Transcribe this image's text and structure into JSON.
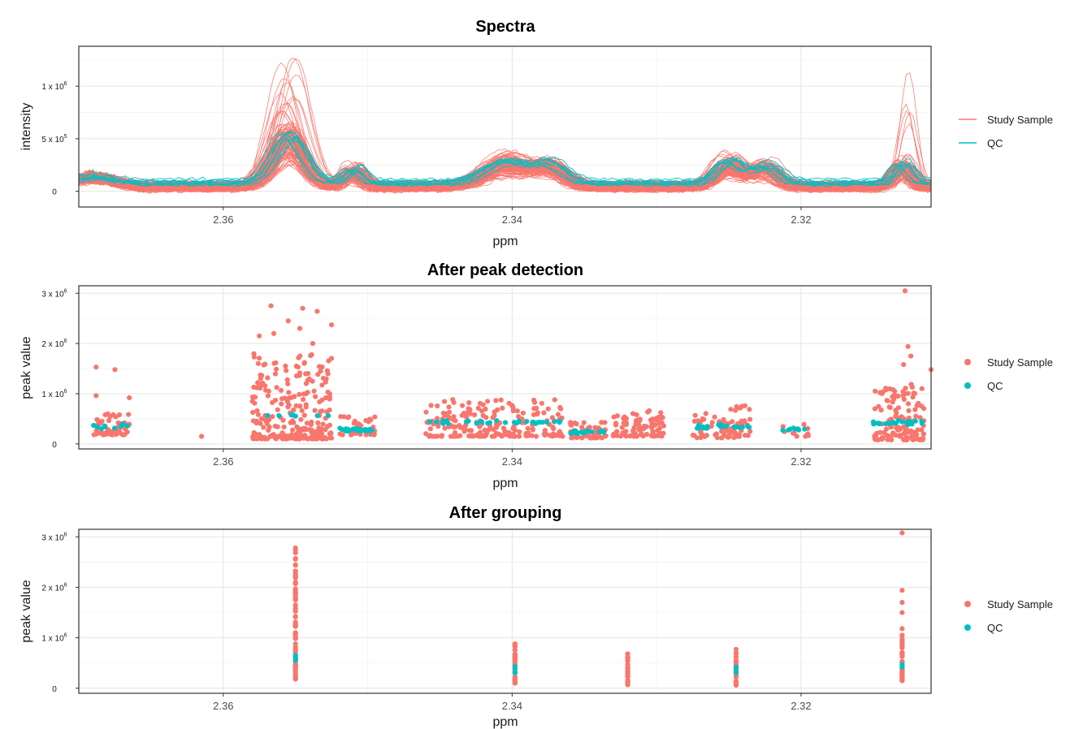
{
  "colors": {
    "study_sample": "#F8766D",
    "qc": "#00BFC4"
  },
  "chart_data": [
    {
      "type": "line",
      "title": "Spectra",
      "xlabel": "ppm",
      "ylabel": "intensity",
      "x_reversed": true,
      "xlim": [
        2.37,
        2.311
      ],
      "ylim": [
        -150000,
        1380000
      ],
      "x_ticks": [
        2.36,
        2.34,
        2.32
      ],
      "x_tick_labels": [
        "2.36",
        "2.34",
        "2.32"
      ],
      "y_ticks": [
        {
          "value": 0,
          "mantissa": "0",
          "exponent": ""
        },
        {
          "value": 500000,
          "mantissa": "5 x 10",
          "exponent": "5"
        },
        {
          "value": 1000000,
          "mantissa": "1 x 10",
          "exponent": "6"
        }
      ],
      "grid": true,
      "legend_position": "right",
      "series": [
        {
          "name": "Study Sample",
          "color": "#F8766D",
          "count": 110,
          "description_points_ppm": [
            2.369,
            2.365,
            2.36,
            2.356,
            2.354,
            2.35,
            2.34,
            2.335,
            2.33,
            2.325,
            2.32,
            2.313,
            2.311
          ],
          "representative_peak_intensity": [
            80000,
            60000,
            70000,
            350000,
            300000,
            150000,
            250000,
            220000,
            120000,
            230000,
            150000,
            250000,
            80000
          ]
        },
        {
          "name": "QC",
          "color": "#00BFC4",
          "count": 10,
          "description_points_ppm": [
            2.369,
            2.365,
            2.36,
            2.356,
            2.354,
            2.35,
            2.34,
            2.335,
            2.33,
            2.325,
            2.32,
            2.313,
            2.311
          ],
          "representative_peak_intensity": [
            150000,
            60000,
            60000,
            350000,
            250000,
            250000,
            300000,
            280000,
            100000,
            300000,
            250000,
            250000,
            -50000
          ]
        }
      ],
      "peaks": [
        {
          "ppm": 2.3555,
          "height": 450000,
          "width": 0.0015
        },
        {
          "ppm": 2.3405,
          "height": 200000,
          "width": 0.002
        },
        {
          "ppm": 2.3375,
          "height": 170000,
          "width": 0.0015
        },
        {
          "ppm": 2.325,
          "height": 200000,
          "width": 0.0012
        },
        {
          "ppm": 2.3225,
          "height": 170000,
          "width": 0.0012
        },
        {
          "ppm": 2.313,
          "height": 180000,
          "width": 0.0008
        },
        {
          "ppm": 2.351,
          "height": 140000,
          "width": 0.0008
        }
      ]
    },
    {
      "type": "scatter",
      "title": "After peak detection",
      "xlabel": "ppm",
      "ylabel": "peak value",
      "x_reversed": true,
      "xlim": [
        2.37,
        2.311
      ],
      "ylim": [
        -100000,
        3150000
      ],
      "x_ticks": [
        2.36,
        2.34,
        2.32
      ],
      "x_tick_labels": [
        "2.36",
        "2.34",
        "2.32"
      ],
      "y_ticks": [
        {
          "value": 0,
          "mantissa": "0",
          "exponent": ""
        },
        {
          "value": 1000000,
          "mantissa": "1 x 10",
          "exponent": "6"
        },
        {
          "value": 2000000,
          "mantissa": "2 x 10",
          "exponent": "6"
        },
        {
          "value": 3000000,
          "mantissa": "3 x 10",
          "exponent": "6"
        }
      ],
      "grid": true,
      "legend_position": "right",
      "clusters": [
        {
          "ppm_min": 2.3665,
          "ppm_max": 2.369,
          "n_study": 55,
          "n_qc": 10,
          "y_min": 180000,
          "y_max": 600000,
          "y_qc": 350000,
          "extra_study": [
            [
              2.3688,
              1530000
            ],
            [
              2.3675,
              1480000
            ],
            [
              2.3688,
              960000
            ],
            [
              2.3665,
              920000
            ]
          ]
        },
        {
          "ppm_min": 2.3615,
          "ppm_max": 2.3615,
          "n_study": 1,
          "n_qc": 0,
          "y_min": 150000,
          "y_max": 150000,
          "y_qc": 0,
          "extra_study": []
        },
        {
          "ppm_min": 2.3525,
          "ppm_max": 2.358,
          "n_study": 250,
          "n_qc": 8,
          "y_min": 100000,
          "y_max": 1800000,
          "y_qc": 560000,
          "extra_study": [
            [
              2.3567,
              2750000
            ],
            [
              2.3545,
              2700000
            ],
            [
              2.3535,
              2640000
            ],
            [
              2.3555,
              2450000
            ],
            [
              2.3525,
              2370000
            ],
            [
              2.3565,
              2200000
            ],
            [
              2.3538,
              2000000
            ],
            [
              2.3575,
              2150000
            ],
            [
              2.3547,
              2300000
            ]
          ]
        },
        {
          "ppm_min": 2.3495,
          "ppm_max": 2.352,
          "n_study": 30,
          "n_qc": 25,
          "y_min": 180000,
          "y_max": 550000,
          "y_qc": 280000,
          "extra_study": []
        },
        {
          "ppm_min": 2.3365,
          "ppm_max": 2.346,
          "n_study": 200,
          "n_qc": 30,
          "y_min": 150000,
          "y_max": 900000,
          "y_qc": 430000,
          "extra_study": []
        },
        {
          "ppm_min": 2.3335,
          "ppm_max": 2.336,
          "n_study": 60,
          "n_qc": 15,
          "y_min": 120000,
          "y_max": 500000,
          "y_qc": 240000,
          "extra_study": []
        },
        {
          "ppm_min": 2.3295,
          "ppm_max": 2.333,
          "n_study": 90,
          "n_qc": 0,
          "y_min": 150000,
          "y_max": 680000,
          "y_qc": 0,
          "extra_study": []
        },
        {
          "ppm_min": 2.3235,
          "ppm_max": 2.3275,
          "n_study": 80,
          "n_qc": 20,
          "y_min": 120000,
          "y_max": 780000,
          "y_qc": 350000,
          "extra_study": []
        },
        {
          "ppm_min": 2.3193,
          "ppm_max": 2.3215,
          "n_study": 12,
          "n_qc": 8,
          "y_min": 150000,
          "y_max": 450000,
          "y_qc": 300000,
          "extra_study": []
        },
        {
          "ppm_min": 2.3115,
          "ppm_max": 2.315,
          "n_study": 140,
          "n_qc": 25,
          "y_min": 80000,
          "y_max": 1200000,
          "y_qc": 420000,
          "extra_study": [
            [
              2.3128,
              3050000
            ],
            [
              2.3126,
              1940000
            ],
            [
              2.3124,
              1750000
            ],
            [
              2.311,
              1480000
            ],
            [
              2.3129,
              1580000
            ]
          ]
        }
      ]
    },
    {
      "type": "scatter",
      "title": "After grouping",
      "xlabel": "ppm",
      "ylabel": "peak value",
      "x_reversed": true,
      "xlim": [
        2.37,
        2.311
      ],
      "ylim": [
        -100000,
        3150000
      ],
      "x_ticks": [
        2.36,
        2.34,
        2.32
      ],
      "x_tick_labels": [
        "2.36",
        "2.34",
        "2.32"
      ],
      "y_ticks": [
        {
          "value": 0,
          "mantissa": "0",
          "exponent": ""
        },
        {
          "value": 1000000,
          "mantissa": "1 x 10",
          "exponent": "6"
        },
        {
          "value": 2000000,
          "mantissa": "2 x 10",
          "exponent": "6"
        },
        {
          "value": 3000000,
          "mantissa": "3 x 10",
          "exponent": "6"
        }
      ],
      "grid": true,
      "legend_position": "right",
      "groups": [
        {
          "ppm": 2.355,
          "y_min": 180000,
          "y_max": 2780000,
          "qc_values": [
            550000,
            650000,
            600000
          ],
          "n_study": 75
        },
        {
          "ppm": 2.3398,
          "y_min": 100000,
          "y_max": 880000,
          "qc_values": [
            300000,
            430000,
            380000
          ],
          "n_study": 25
        },
        {
          "ppm": 2.332,
          "y_min": 70000,
          "y_max": 680000,
          "qc_values": [],
          "n_study": 25
        },
        {
          "ppm": 2.3245,
          "y_min": 60000,
          "y_max": 770000,
          "qc_values": [
            310000,
            420000,
            360000
          ],
          "n_study": 25
        },
        {
          "ppm": 2.313,
          "y_min": 150000,
          "y_max": 1180000,
          "qc_values": [
            420000,
            470000
          ],
          "n_study": 40,
          "extra_study": [
            3080000,
            1940000,
            1700000,
            1500000,
            1050000,
            950000
          ]
        }
      ]
    }
  ],
  "legend": {
    "study_sample_label": "Study Sample",
    "qc_label": "QC"
  }
}
